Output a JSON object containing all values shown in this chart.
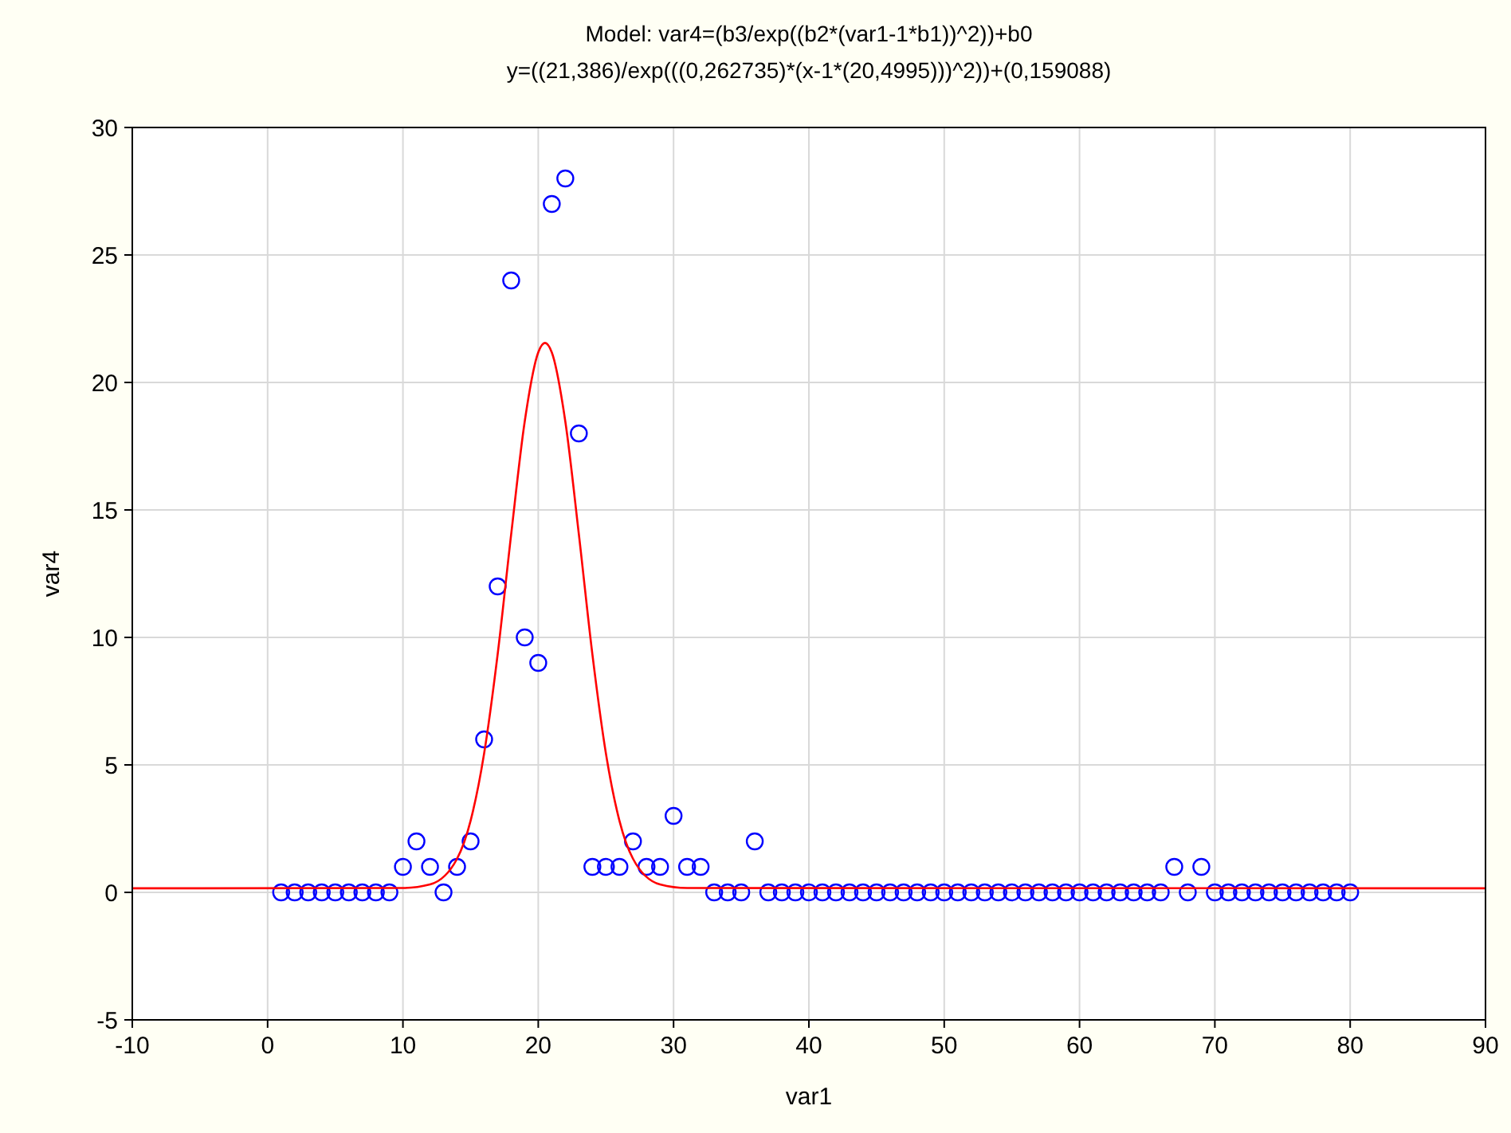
{
  "chart_data": {
    "type": "scatter",
    "title": "Model: var4=(b3/exp((b2*(var1-1*b1))^2))+b0",
    "subtitle": "y=((21,386)/exp(((0,262735)*(x-1*(20,4995)))^2))+(0,159088)",
    "xlabel": "var1",
    "ylabel": "var4",
    "xlim": [
      -10,
      90
    ],
    "xticks": [
      -10,
      0,
      10,
      20,
      30,
      40,
      50,
      60,
      70,
      80,
      90
    ],
    "ylim": [
      -5,
      30
    ],
    "yticks": [
      -5,
      0,
      5,
      10,
      15,
      20,
      25,
      30
    ],
    "grid": true,
    "series": [
      {
        "color": "#0000ff",
        "marker": "circle",
        "x": [
          1,
          2,
          3,
          4,
          5,
          6,
          7,
          8,
          9,
          10,
          11,
          12,
          13,
          14,
          15,
          16,
          17,
          18,
          19,
          20,
          21,
          22,
          23,
          24,
          25,
          26,
          27,
          28,
          29,
          30,
          31,
          32,
          33,
          34,
          35,
          36,
          37,
          38,
          39,
          40,
          41,
          42,
          43,
          44,
          45,
          46,
          47,
          48,
          49,
          50,
          51,
          52,
          53,
          54,
          55,
          56,
          57,
          58,
          59,
          60,
          61,
          62,
          63,
          64,
          65,
          66,
          67,
          68,
          69,
          70,
          71,
          72,
          73,
          74,
          75,
          76,
          77,
          78,
          79,
          80
        ],
        "values": [
          0,
          0,
          0,
          0,
          0,
          0,
          0,
          0,
          0,
          1,
          2,
          1,
          0,
          1,
          2,
          6,
          12,
          24,
          10,
          9,
          27,
          28,
          18,
          1,
          1,
          1,
          2,
          1,
          1,
          3,
          1,
          1,
          0,
          0,
          0,
          2,
          0,
          0,
          0,
          0,
          0,
          0,
          0,
          0,
          0,
          0,
          0,
          0,
          0,
          0,
          0,
          0,
          0,
          0,
          0,
          0,
          0,
          0,
          0,
          0,
          0,
          0,
          0,
          0,
          0,
          0,
          1,
          0,
          1,
          0,
          0,
          0,
          0,
          0,
          0,
          0,
          0,
          0,
          0,
          0
        ]
      },
      {
        "type": "line",
        "color": "#ff0000",
        "line_style": "solid",
        "x": [
          -10,
          10,
          12,
          14,
          15,
          16,
          17,
          18,
          19,
          20,
          20.5,
          21,
          22,
          23,
          24,
          25,
          26,
          27,
          29,
          31,
          90
        ],
        "values": [
          0.16,
          0.17,
          0.31,
          1.32,
          2.81,
          5.45,
          9.34,
          14.05,
          18.47,
          21.18,
          21.55,
          21.18,
          18.47,
          14.05,
          9.34,
          5.45,
          2.81,
          1.32,
          0.31,
          0.17,
          0.16
        ]
      }
    ]
  }
}
